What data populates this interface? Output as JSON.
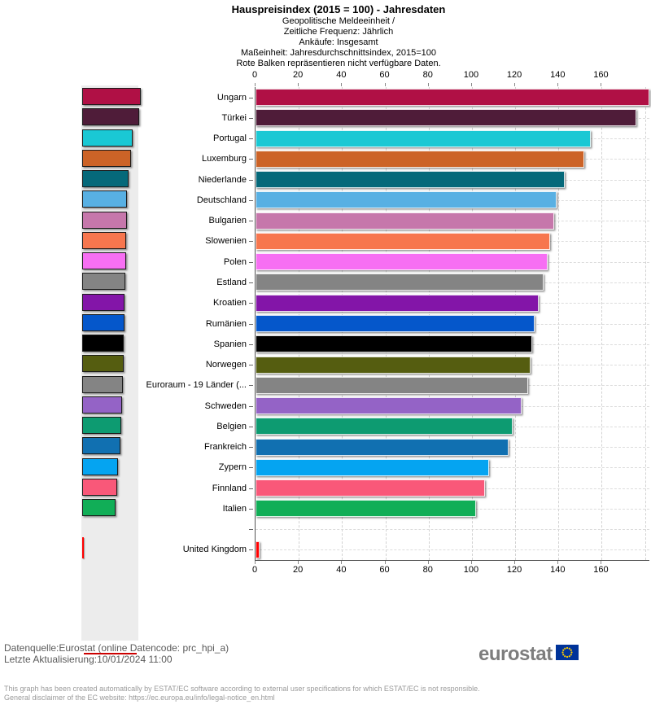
{
  "header": {
    "title": "Hauspreisindex (2015 = 100) - Jahresdaten",
    "subtitle_lines": [
      "Geopolitische Meldeeinheit /",
      "Zeitliche Frequenz: Jährlich",
      "Ankäufe: Insgesamt",
      "Maßeinheit: Jahresdurchschnittsindex, 2015=100",
      "Rote Balken repräsentieren nicht verfügbare Daten."
    ]
  },
  "chart_data": {
    "type": "bar",
    "orientation": "horizontal",
    "title": "Hauspreisindex (2015 = 100) - Jahresdaten",
    "xlabel": "Jahresdurchschnittsindex, 2015=100",
    "ylabel": "Geopolitische Meldeeinheit",
    "axis": {
      "min": 0,
      "max": 182,
      "tick_step": 20,
      "ticks": [
        0,
        20,
        40,
        60,
        80,
        100,
        120,
        140,
        160
      ],
      "grid": true
    },
    "legend_position": "left-mini-chart",
    "note": "Rote Balken repräsentieren nicht verfügbare Daten.",
    "rows": [
      {
        "label": "Ungarn",
        "value": 182,
        "color": "#B01045",
        "no_data": false
      },
      {
        "label": "Türkei",
        "value": 176,
        "color": "#4F1C39",
        "no_data": false
      },
      {
        "label": "Portugal",
        "value": 155,
        "color": "#1AC8D4",
        "no_data": false
      },
      {
        "label": "Luxemburg",
        "value": 152,
        "color": "#CC6327",
        "no_data": false
      },
      {
        "label": "Niederlande",
        "value": 143,
        "color": "#05697A",
        "no_data": false
      },
      {
        "label": "Deutschland",
        "value": 139,
        "color": "#58B0E3",
        "no_data": false
      },
      {
        "label": "Bulgarien",
        "value": 138,
        "color": "#C677AB",
        "no_data": false
      },
      {
        "label": "Slowenien",
        "value": 136,
        "color": "#F7764E",
        "no_data": false
      },
      {
        "label": "Polen",
        "value": 135,
        "color": "#F76FF3",
        "no_data": false
      },
      {
        "label": "Estland",
        "value": 133,
        "color": "#848484",
        "no_data": false
      },
      {
        "label": "Kroatien",
        "value": 131,
        "color": "#8315A8",
        "no_data": false
      },
      {
        "label": "Rumänien",
        "value": 129,
        "color": "#0557CB",
        "no_data": false
      },
      {
        "label": "Spanien",
        "value": 128,
        "color": "#000000",
        "no_data": false
      },
      {
        "label": "Norwegen",
        "value": 127,
        "color": "#555D10",
        "no_data": false
      },
      {
        "label": "Euroraum - 19 Länder (...",
        "value": 126,
        "color": "#848484",
        "no_data": false
      },
      {
        "label": "Schweden",
        "value": 123,
        "color": "#9463C6",
        "no_data": false
      },
      {
        "label": "Belgien",
        "value": 119,
        "color": "#0D9B71",
        "no_data": false
      },
      {
        "label": "Frankreich",
        "value": 117,
        "color": "#1170B1",
        "no_data": false
      },
      {
        "label": "Zypern",
        "value": 108,
        "color": "#05A4F1",
        "no_data": false
      },
      {
        "label": "Finnland",
        "value": 106,
        "color": "#F95879",
        "no_data": false
      },
      {
        "label": "Italien",
        "value": 102,
        "color": "#11AE57",
        "no_data": false
      },
      {
        "label": "",
        "value": null,
        "color": null,
        "no_data": false
      },
      {
        "label": "United Kingdom",
        "value": 2,
        "color": "#FF0000",
        "no_data": true
      }
    ]
  },
  "footer": {
    "source_line": "Datenquelle:Eurostat (online Datencode: prc_hpi_a)",
    "updated_line": "Letzte Aktualisierung:10/01/2024 11:00",
    "disclaimer_line1": "This graph has been created automatically by ESTAT/EC software according to external user specifications for which ESTAT/EC is not responsible.",
    "disclaimer_line2": "General disclaimer of the EC website: https://ec.europa.eu/info/legal-notice_en.html"
  },
  "logo": {
    "text": "eurostat",
    "flag_color": "#003399",
    "star_color": "#FFCC00"
  }
}
